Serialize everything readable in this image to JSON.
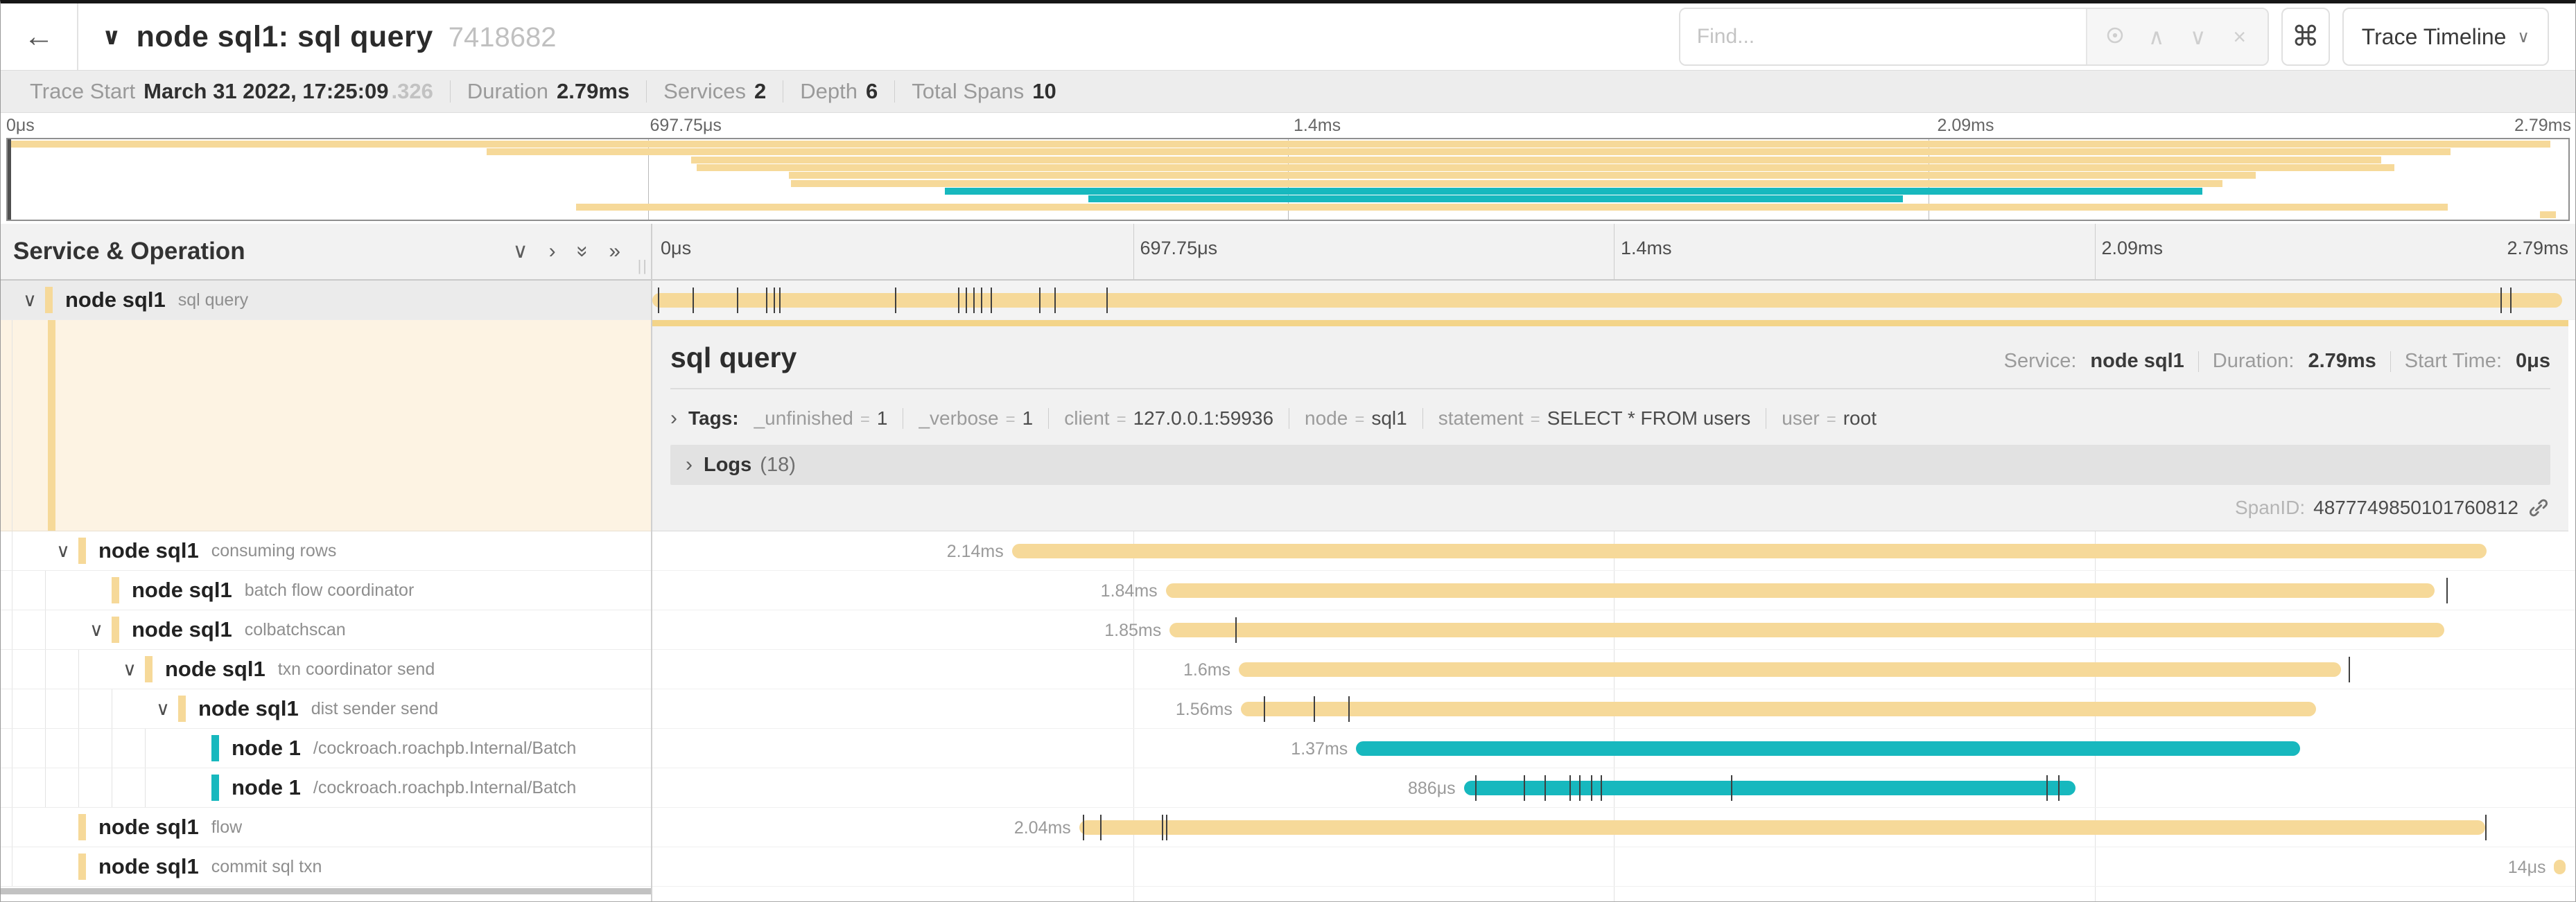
{
  "window": {
    "back_icon": "←",
    "collapse_icon": "∨",
    "title": "node sql1: sql query",
    "trace_id": "7418682",
    "find_placeholder": "Find...",
    "find_nav_up": "∧",
    "find_nav_down": "∨",
    "find_clear": "×",
    "shortcut_key": "⌘",
    "view_button_label": "Trace Timeline",
    "view_button_chevron": "∨"
  },
  "trace_info": {
    "trace_start_label": "Trace Start",
    "trace_start_value": "March 31 2022, 17:25:09",
    "trace_start_fraction": ".326",
    "duration_label": "Duration",
    "duration_value": "2.79ms",
    "services_label": "Services",
    "services_value": "2",
    "depth_label": "Depth",
    "depth_value": "6",
    "total_spans_label": "Total Spans",
    "total_spans_value": "10"
  },
  "ruler_ticks": [
    "0μs",
    "697.75μs",
    "1.4ms",
    "2.09ms",
    "2.79ms"
  ],
  "left_panel": {
    "header_title": "Service & Operation",
    "icon_collapse_one": "∨",
    "icon_expand_one": "›",
    "icon_collapse_all": "»",
    "icon_expand_all": "»",
    "grip": "||"
  },
  "colors": {
    "tan": "#f6d999",
    "teal": "#17b8be",
    "tan_border": "#f3d489"
  },
  "spans": [
    {
      "service": "node sql1",
      "operation": "sql query",
      "level": 0,
      "color": "tan",
      "chevron": true,
      "selected": true,
      "start_pct": 0,
      "width_pct": 99.3,
      "duration_label": "",
      "ticks_pct": [
        0.3,
        2.1,
        4.4,
        5.9,
        6.3,
        6.6,
        12.6,
        15.9,
        16.3,
        16.7,
        17.1,
        17.6,
        20.1,
        20.9,
        23.6,
        96.1,
        96.6
      ]
    },
    {
      "service": "node sql1",
      "operation": "consuming rows",
      "level": 1,
      "color": "tan",
      "chevron": true,
      "selected": false,
      "start_pct": 18.7,
      "width_pct": 76.7,
      "duration_label": "2.14ms",
      "ticks_pct": []
    },
    {
      "service": "node sql1",
      "operation": "batch flow coordinator",
      "level": 2,
      "color": "tan",
      "chevron": false,
      "selected": false,
      "start_pct": 26.7,
      "width_pct": 66.0,
      "duration_label": "1.84ms",
      "ticks_pct": [
        93.3
      ]
    },
    {
      "service": "node sql1",
      "operation": "colbatchscan",
      "level": 2,
      "color": "tan",
      "chevron": true,
      "selected": false,
      "start_pct": 26.9,
      "width_pct": 66.3,
      "duration_label": "1.85ms",
      "ticks_pct": [
        30.3
      ]
    },
    {
      "service": "node sql1",
      "operation": "txn coordinator send",
      "level": 3,
      "color": "tan",
      "chevron": true,
      "selected": false,
      "start_pct": 30.5,
      "width_pct": 57.3,
      "duration_label": "1.6ms",
      "ticks_pct": [
        88.2
      ]
    },
    {
      "service": "node sql1",
      "operation": "dist sender send",
      "level": 4,
      "color": "tan",
      "chevron": true,
      "selected": false,
      "start_pct": 30.6,
      "width_pct": 55.9,
      "duration_label": "1.56ms",
      "ticks_pct": [
        31.8,
        34.4,
        36.2
      ]
    },
    {
      "service": "node 1",
      "operation": "/cockroach.roachpb.Internal/Batch",
      "level": 5,
      "color": "teal",
      "chevron": false,
      "selected": false,
      "start_pct": 36.6,
      "width_pct": 49.1,
      "duration_label": "1.37ms",
      "ticks_pct": []
    },
    {
      "service": "node 1",
      "operation": "/cockroach.roachpb.Internal/Batch",
      "level": 5,
      "color": "teal",
      "chevron": false,
      "selected": false,
      "start_pct": 42.2,
      "width_pct": 31.8,
      "duration_label": "886μs",
      "ticks_pct": [
        42.8,
        45.3,
        46.4,
        47.7,
        48.2,
        48.8,
        49.3,
        56.1,
        72.5,
        73.1
      ]
    },
    {
      "service": "node sql1",
      "operation": "flow",
      "level": 1,
      "color": "tan",
      "chevron": false,
      "selected": false,
      "start_pct": 22.2,
      "width_pct": 73.1,
      "duration_label": "2.04ms",
      "ticks_pct": [
        22.4,
        23.3,
        26.5,
        26.7,
        95.3
      ]
    },
    {
      "service": "node sql1",
      "operation": "commit sql txn",
      "level": 1,
      "color": "tan",
      "chevron": false,
      "selected": false,
      "start_pct": 98.9,
      "width_pct": 0.6,
      "duration_label": "14μs",
      "ticks_pct": []
    }
  ],
  "detail": {
    "title": "sql query",
    "service_label": "Service:",
    "service_value": "node sql1",
    "duration_label": "Duration:",
    "duration_value": "2.79ms",
    "start_time_label": "Start Time:",
    "start_time_value": "0μs",
    "tags_chevron": "›",
    "tags_label": "Tags:",
    "tags": [
      {
        "key": "_unfinished",
        "value": "1"
      },
      {
        "key": "_verbose",
        "value": "1"
      },
      {
        "key": "client",
        "value": "127.0.0.1:59936"
      },
      {
        "key": "node",
        "value": "sql1"
      },
      {
        "key": "statement",
        "value": "SELECT * FROM users"
      },
      {
        "key": "user",
        "value": "root"
      }
    ],
    "logs_chevron": "›",
    "logs_label": "Logs",
    "logs_count": "(18)",
    "spanid_label": "SpanID:",
    "spanid_value": "4877749850101760812"
  }
}
